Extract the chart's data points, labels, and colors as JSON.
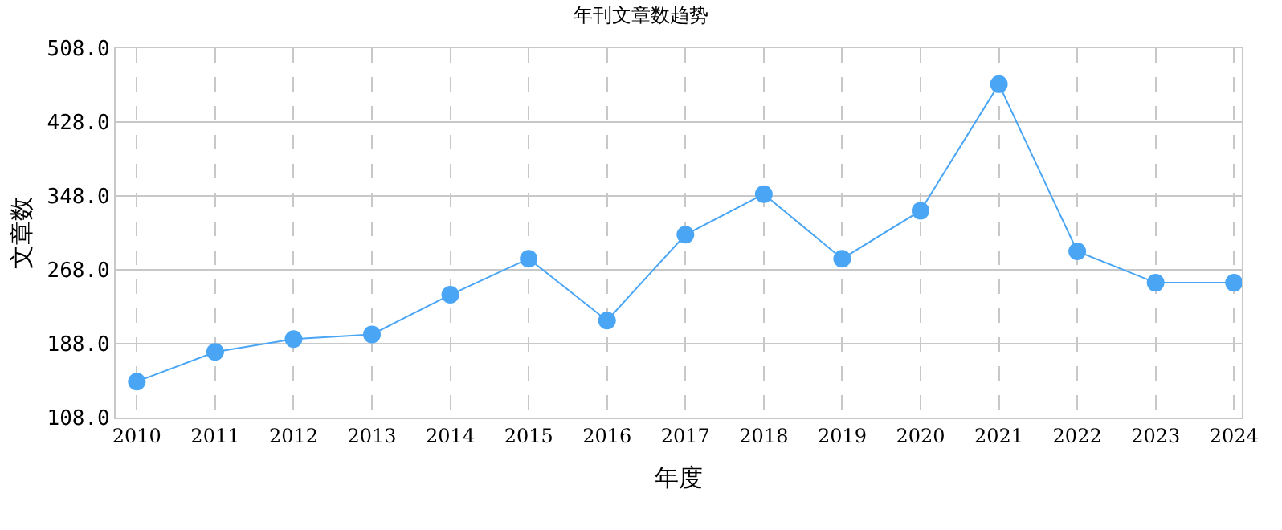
{
  "chart_data": {
    "type": "line",
    "title": "年刊文章数趋势",
    "xlabel": "年度",
    "ylabel": "文章数",
    "categories": [
      "2010",
      "2011",
      "2012",
      "2013",
      "2014",
      "2015",
      "2016",
      "2017",
      "2018",
      "2019",
      "2020",
      "2021",
      "2022",
      "2023",
      "2024"
    ],
    "series": [
      {
        "color": "#4aa6f5",
        "values": [
          147,
          179,
          193,
          198,
          241,
          280,
          213,
          306,
          350,
          280,
          332,
          469,
          288,
          254,
          254
        ]
      }
    ],
    "ylim": [
      108,
      508
    ],
    "yticks": [
      {
        "value": 108,
        "label": "108.0"
      },
      {
        "value": 188,
        "label": "188.0"
      },
      {
        "value": 268,
        "label": "268.0"
      },
      {
        "value": 348,
        "label": "348.0"
      },
      {
        "value": 428,
        "label": "428.0"
      },
      {
        "value": 508,
        "label": "508.0"
      }
    ],
    "grid": true,
    "marker": "circle",
    "line_style": "solid",
    "legend": false
  }
}
